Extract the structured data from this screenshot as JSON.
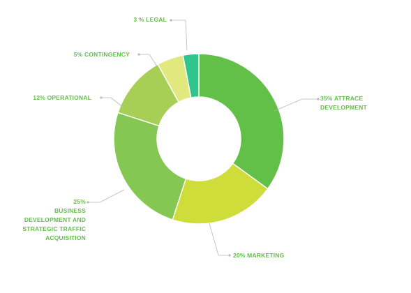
{
  "chart_data": {
    "type": "pie",
    "variant": "donut",
    "title": "",
    "slices": [
      {
        "name": "ATTRACE DEVELOPMENT",
        "value": 35,
        "color": "#62bf48",
        "label_lines": [
          "35% ATTRACE",
          "DEVELOPMENT"
        ]
      },
      {
        "name": "MARKETING",
        "value": 20,
        "color": "#cfdd3a",
        "label_lines": [
          "20%  MARKETING"
        ]
      },
      {
        "name": "BUSINESS DEVELOPMENT AND STRATEGIC TRAFFIC ACQUISITION",
        "value": 25,
        "color": "#84c752",
        "label_lines": [
          "25%",
          "BUSINESS",
          "DEVELOPMENT AND",
          "STRATEGIC TRAFFIC",
          "ACQUISITION"
        ]
      },
      {
        "name": "OPERATIONAL",
        "value": 12,
        "color": "#a7cf55",
        "label_lines": [
          "12% OPERATIONAL"
        ]
      },
      {
        "name": "CONTINGENCY",
        "value": 5,
        "color": "#e0e87e",
        "label_lines": [
          "5% CONTINGENCY"
        ]
      },
      {
        "name": "LEGAL",
        "value": 3,
        "color": "#31c48c",
        "label_lines": [
          "3 % LEGAL"
        ]
      }
    ],
    "label_color": "#62bf48",
    "leader_color": "#b7b7b7"
  }
}
